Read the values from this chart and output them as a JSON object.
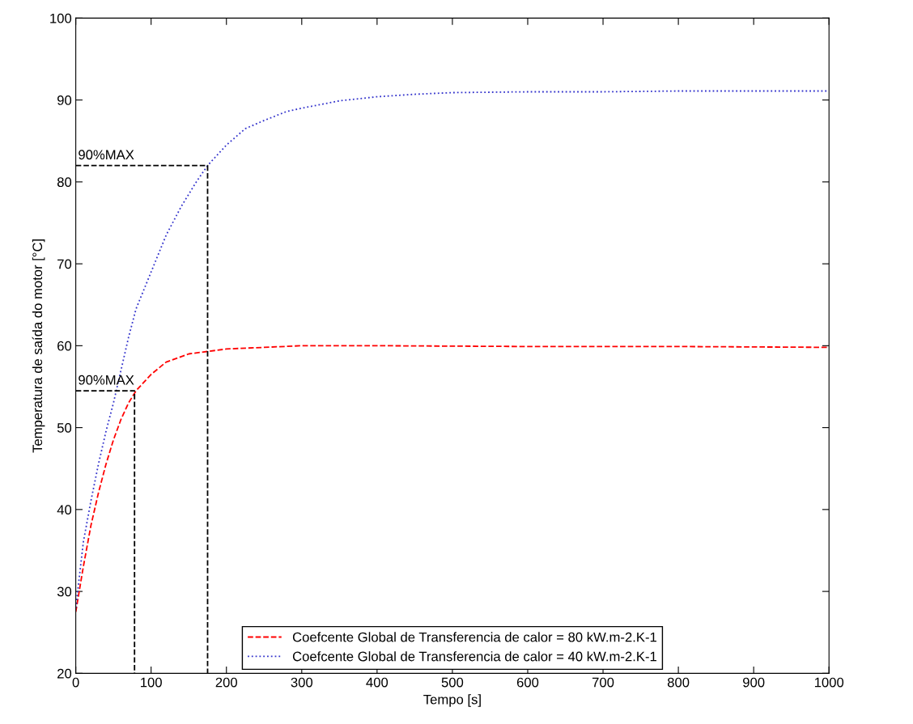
{
  "chart_data": {
    "type": "line",
    "xlabel": "Tempo [s]",
    "ylabel": "Temperatura de saída do motor [°C]",
    "xlim": [
      0,
      1000
    ],
    "xticks": [
      0,
      100,
      200,
      300,
      400,
      500,
      600,
      700,
      800,
      900,
      1000
    ],
    "ylim": [
      20,
      100
    ],
    "yticks": [
      20,
      30,
      40,
      50,
      60,
      70,
      80,
      90,
      100
    ],
    "grid": false,
    "legend": "bottom",
    "marker": "none",
    "series": [
      {
        "name": "Coefcente Global de Transferencia de calor = 80 kW.m-2.K-1",
        "color": "#ff0000",
        "line_style": "dashed",
        "x": [
          0,
          10,
          20,
          30,
          40,
          50,
          60,
          70,
          80,
          100,
          120,
          150,
          175,
          200,
          250,
          300,
          400,
          600,
          800,
          1000
        ],
        "values": [
          27.5,
          33,
          38,
          42,
          45.5,
          48.5,
          51,
          53,
          54.5,
          56.5,
          58,
          59,
          59.3,
          59.6,
          59.8,
          60,
          60,
          59.9,
          59.9,
          59.8
        ]
      },
      {
        "name": "Coefcente Global de Transferencia de calor = 40 kW.m-2.K-1",
        "color": "#3333cc",
        "line_style": "dotted",
        "x": [
          0,
          10,
          20,
          30,
          40,
          50,
          60,
          70,
          80,
          100,
          120,
          140,
          160,
          175,
          200,
          225,
          250,
          280,
          300,
          350,
          400,
          450,
          500,
          600,
          700,
          800,
          1000
        ],
        "values": [
          28,
          36,
          41,
          45.5,
          49.5,
          53,
          57,
          61,
          64.5,
          69,
          73.5,
          77,
          80,
          82,
          84.5,
          86.5,
          87.5,
          88.6,
          89,
          89.9,
          90.4,
          90.7,
          90.9,
          91,
          91,
          91.1,
          91.1
        ]
      },
      {
        "color": "#000000",
        "line_style": "dashed",
        "x": [
          0,
          175,
          175
        ],
        "values": [
          82,
          82,
          20
        ]
      },
      {
        "color": "#000000",
        "line_style": "dashed",
        "x": [
          0,
          78,
          78
        ],
        "values": [
          54.5,
          54.5,
          20
        ]
      }
    ],
    "annotations": [
      {
        "text": "90%MAX",
        "x": 0,
        "y": 82
      },
      {
        "text": "90%MAX",
        "x": 0,
        "y": 54.5
      }
    ]
  }
}
